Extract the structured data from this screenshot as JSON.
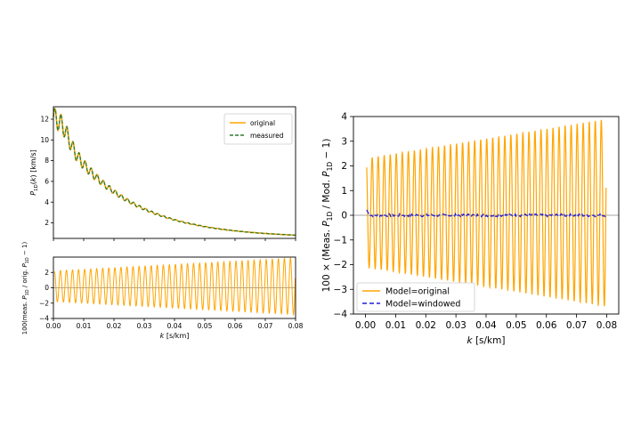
{
  "chart_data": [
    {
      "type": "line",
      "panel": "top-left",
      "ylabel": "P_1D(k) [km/s]",
      "xlim": [
        0.0,
        0.08
      ],
      "ylim": [
        0.5,
        13.2
      ],
      "yticks": [
        "2",
        "4",
        "6",
        "8",
        "10",
        "12"
      ],
      "grid": false,
      "legend_position": "top-right",
      "series": [
        {
          "name": "original",
          "color": "#FFA500",
          "style": "solid",
          "x": [
            0.0,
            0.005,
            0.01,
            0.015,
            0.02,
            0.025,
            0.03,
            0.04,
            0.05,
            0.06,
            0.07,
            0.08
          ],
          "y": [
            10.8,
            12.6,
            10.5,
            8.2,
            6.4,
            5.0,
            3.9,
            2.6,
            1.8,
            1.3,
            1.0,
            0.75
          ]
        },
        {
          "name": "measured",
          "color": "#2e7d32",
          "style": "dashed",
          "x": [
            0.0,
            0.005,
            0.01,
            0.015,
            0.02,
            0.025,
            0.03,
            0.04,
            0.05,
            0.06,
            0.07,
            0.08
          ],
          "y": [
            10.8,
            12.6,
            10.5,
            8.2,
            6.4,
            5.0,
            3.9,
            2.6,
            1.8,
            1.3,
            1.0,
            0.75
          ]
        }
      ]
    },
    {
      "type": "line",
      "panel": "bottom-left",
      "ylabel": "100 (meas. P_1D / orig. P_1D − 1)",
      "xlabel": "k [s/km]",
      "xlim": [
        0.0,
        0.08
      ],
      "ylim": [
        -4,
        4
      ],
      "xticks": [
        "0.00",
        "0.01",
        "0.02",
        "0.03",
        "0.04",
        "0.05",
        "0.06",
        "0.07",
        "0.08"
      ],
      "yticks": [
        "−4",
        "−2",
        "0",
        "2"
      ],
      "reference_line": 0,
      "series": [
        {
          "name": "",
          "color": "#FFA500",
          "oscillation_count": 40,
          "amplitude_start": 2.0,
          "amplitude_end": 3.7,
          "offset": 0.2
        }
      ]
    },
    {
      "type": "line",
      "panel": "right",
      "ylabel": "100 × (Meas. P_1D / Mod. P_1D − 1)",
      "xlabel": "k [s/km]",
      "xlim": [
        -0.004,
        0.084
      ],
      "ylim": [
        -4,
        4
      ],
      "xticks": [
        "0.00",
        "0.01",
        "0.02",
        "0.03",
        "0.04",
        "0.05",
        "0.06",
        "0.07",
        "0.08"
      ],
      "yticks": [
        "−4",
        "−3",
        "−2",
        "−1",
        "0",
        "1",
        "2",
        "3",
        "4"
      ],
      "reference_line": 0,
      "legend_position": "bottom-left",
      "series": [
        {
          "name": "Model=original",
          "color": "#FFA500",
          "style": "solid",
          "oscillation_count": 40,
          "amplitude_start": 2.2,
          "amplitude_end": 3.8,
          "offset": 0.1
        },
        {
          "name": "Model=windowed",
          "color": "#1f1fd6",
          "style": "dashed",
          "values_near": 0.0,
          "noise_amplitude": 0.06
        }
      ]
    }
  ]
}
